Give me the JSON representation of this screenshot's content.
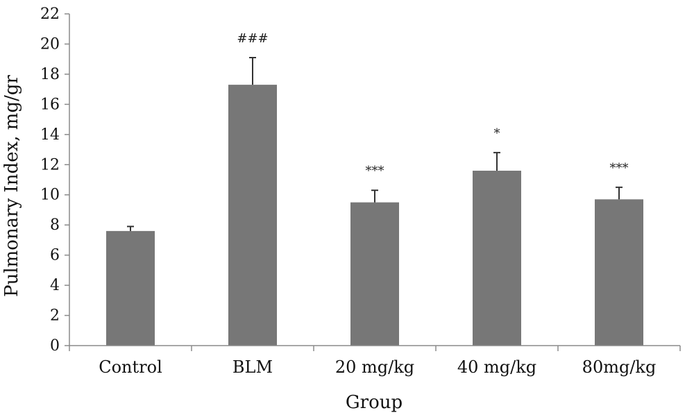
{
  "chart_data": {
    "type": "bar",
    "title": "",
    "xlabel": "Group",
    "ylabel": "Pulmonary Index, mg/gr",
    "ylim": [
      0,
      22
    ],
    "yticks": [
      0,
      2,
      4,
      6,
      8,
      10,
      12,
      14,
      16,
      18,
      20,
      22
    ],
    "grid": false,
    "legend": "none",
    "bar_color": "#777777",
    "categories": [
      "Control",
      "BLM",
      "20 mg/kg",
      "40 mg/kg",
      "80mg/kg"
    ],
    "values": [
      7.6,
      17.3,
      9.5,
      11.6,
      9.7
    ],
    "errors": [
      0.3,
      1.8,
      0.8,
      1.2,
      0.8
    ],
    "annotations": [
      "",
      "###",
      "***",
      "*",
      "***"
    ]
  }
}
